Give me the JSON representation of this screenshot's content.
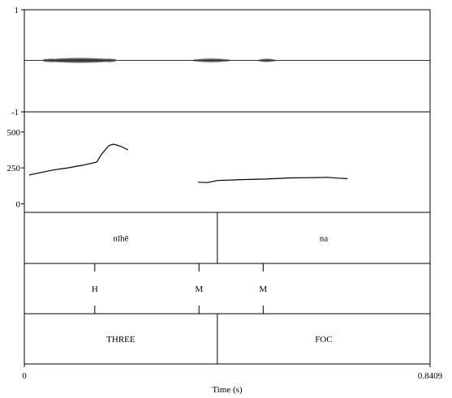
{
  "chart_data": {
    "type": "line",
    "xlabel": "Time (s)",
    "xlim": [
      0,
      0.8409
    ],
    "x_tick_labels": [
      "0",
      "0.8409"
    ],
    "waveform": {
      "ylim": [
        -1,
        1
      ],
      "tick_labels": [
        "1",
        "-1"
      ],
      "bursts": [
        {
          "start": 0.04,
          "end": 0.19,
          "amplitude": 0.05
        },
        {
          "start": 0.35,
          "end": 0.425,
          "amplitude": 0.03
        },
        {
          "start": 0.485,
          "end": 0.52,
          "amplitude": 0.025
        }
      ]
    },
    "pitch": {
      "ylim": [
        -60,
        640
      ],
      "tick_labels": [
        "500",
        "250",
        "0"
      ],
      "tick_values": [
        500,
        250,
        0
      ],
      "series": [
        {
          "x": [
            0.01,
            0.03,
            0.06,
            0.09,
            0.12,
            0.15,
            0.16,
            0.175,
            0.185,
            0.2,
            0.215
          ],
          "y": [
            200,
            215,
            235,
            250,
            268,
            290,
            345,
            405,
            415,
            400,
            375
          ]
        },
        {
          "x": [
            0.36,
            0.38,
            0.4,
            0.45,
            0.5,
            0.55,
            0.6,
            0.63,
            0.65,
            0.67
          ],
          "y": [
            150,
            148,
            162,
            168,
            172,
            180,
            182,
            184,
            178,
            175
          ]
        }
      ]
    },
    "tiers": [
      {
        "intervals": [
          {
            "start": 0,
            "end": 0.4,
            "label": "nīhē"
          },
          {
            "start": 0.4,
            "end": 0.8409,
            "label": "na"
          }
        ]
      },
      {
        "points": [
          {
            "t": 0.146,
            "label": "H"
          },
          {
            "t": 0.362,
            "label": "M"
          },
          {
            "t": 0.495,
            "label": "M"
          }
        ]
      },
      {
        "intervals": [
          {
            "start": 0,
            "end": 0.4,
            "label": "THREE"
          },
          {
            "start": 0.4,
            "end": 0.8409,
            "label": "FOC"
          }
        ]
      }
    ]
  }
}
